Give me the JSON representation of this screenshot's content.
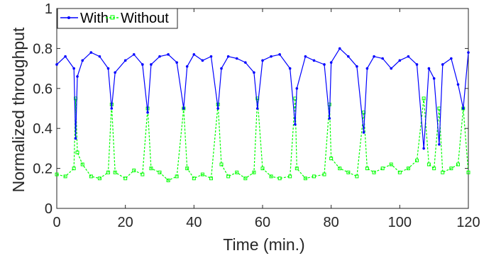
{
  "chart_data": {
    "type": "line",
    "xlabel": "Time (min.)",
    "ylabel": "Normalized throughput",
    "xlim": [
      0,
      120
    ],
    "ylim": [
      0,
      1
    ],
    "x_ticks": [
      "0",
      "20",
      "40",
      "60",
      "80",
      "100",
      "120"
    ],
    "y_ticks": [
      "0",
      "0.2",
      "0.4",
      "0.6",
      "0.8",
      "1"
    ],
    "grid": false,
    "legend_position": "top-left",
    "x": [
      0.0,
      2.5,
      5.0,
      5.5,
      6.0,
      7.5,
      10.0,
      12.5,
      15.0,
      16.0,
      17.0,
      20.0,
      22.5,
      25.0,
      26.5,
      27.5,
      30.0,
      32.5,
      35.0,
      37.0,
      38.0,
      40.0,
      42.5,
      45.0,
      47.0,
      48.0,
      50.0,
      52.5,
      55.0,
      57.5,
      58.5,
      60.0,
      62.5,
      65.0,
      68.0,
      69.5,
      70.0,
      72.5,
      75.0,
      78.0,
      79.5,
      80.0,
      82.5,
      85.0,
      87.5,
      89.5,
      90.5,
      92.5,
      95.0,
      97.5,
      100.0,
      102.5,
      105.0,
      107.0,
      108.5,
      110.0,
      111.5,
      112.5,
      115.0,
      117.0,
      118.5,
      120.0
    ],
    "series": [
      {
        "name": "With",
        "color": "#0000ff",
        "marker": "dot",
        "values": [
          0.72,
          0.76,
          0.7,
          0.35,
          0.66,
          0.74,
          0.78,
          0.76,
          0.7,
          0.5,
          0.68,
          0.74,
          0.77,
          0.72,
          0.48,
          0.72,
          0.76,
          0.77,
          0.73,
          0.5,
          0.71,
          0.77,
          0.74,
          0.76,
          0.5,
          0.7,
          0.76,
          0.75,
          0.73,
          0.68,
          0.5,
          0.74,
          0.76,
          0.77,
          0.7,
          0.42,
          0.6,
          0.76,
          0.74,
          0.72,
          0.45,
          0.73,
          0.8,
          0.76,
          0.71,
          0.38,
          0.7,
          0.76,
          0.75,
          0.7,
          0.74,
          0.76,
          0.72,
          0.3,
          0.7,
          0.65,
          0.32,
          0.72,
          0.75,
          0.62,
          0.5,
          0.78
        ]
      },
      {
        "name": "Without",
        "color": "#00ff00",
        "marker": "square",
        "dashed": true,
        "values": [
          0.17,
          0.16,
          0.2,
          0.55,
          0.28,
          0.22,
          0.16,
          0.15,
          0.18,
          0.52,
          0.18,
          0.15,
          0.19,
          0.17,
          0.5,
          0.2,
          0.18,
          0.14,
          0.16,
          0.5,
          0.2,
          0.15,
          0.17,
          0.15,
          0.52,
          0.22,
          0.16,
          0.18,
          0.15,
          0.18,
          0.55,
          0.2,
          0.16,
          0.15,
          0.16,
          0.55,
          0.2,
          0.15,
          0.16,
          0.17,
          0.52,
          0.25,
          0.2,
          0.18,
          0.16,
          0.48,
          0.2,
          0.18,
          0.2,
          0.22,
          0.18,
          0.2,
          0.24,
          0.55,
          0.22,
          0.2,
          0.5,
          0.18,
          0.2,
          0.22,
          0.5,
          0.18
        ]
      }
    ]
  }
}
